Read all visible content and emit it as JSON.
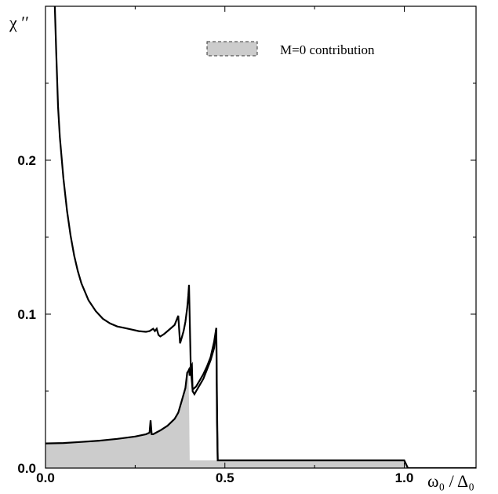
{
  "chart_data": {
    "type": "line",
    "xlim": [
      0.0,
      1.2
    ],
    "ylim": [
      0.0,
      0.3
    ],
    "x_ticks": [
      {
        "value": 0.0,
        "label": "0.0"
      },
      {
        "value": 0.5,
        "label": "0.5"
      },
      {
        "value": 1.0,
        "label": "1.0"
      }
    ],
    "y_ticks": [
      {
        "value": 0.0,
        "label": "0.0"
      },
      {
        "value": 0.1,
        "label": "0.1"
      },
      {
        "value": 0.2,
        "label": "0.2"
      }
    ],
    "x_minor_ticks": [
      0.25,
      0.75
    ],
    "y_minor_ticks": [
      0.05,
      0.15,
      0.25
    ],
    "ylabel": "χ ′′",
    "xlabel": "ω₀ / Δ₀",
    "legend": {
      "label": "M=0 contribution",
      "placement": "top-right",
      "fill": "#cccccc",
      "border": "dashed"
    },
    "series": [
      {
        "kind": "line",
        "color": "#000000",
        "x": [
          0.026,
          0.03,
          0.035,
          0.04,
          0.05,
          0.06,
          0.07,
          0.08,
          0.09,
          0.1,
          0.12,
          0.14,
          0.16,
          0.18,
          0.2,
          0.22,
          0.24,
          0.26,
          0.28,
          0.29,
          0.3,
          0.305,
          0.31,
          0.315,
          0.32,
          0.33,
          0.34,
          0.36,
          0.37,
          0.375,
          0.38,
          0.385,
          0.39,
          0.395,
          0.398,
          0.4,
          0.405,
          0.41,
          0.42,
          0.43,
          0.44,
          0.45,
          0.46,
          0.47,
          0.476,
          0.478,
          0.48
        ],
        "y": [
          0.3,
          0.27,
          0.235,
          0.215,
          0.188,
          0.167,
          0.151,
          0.138,
          0.128,
          0.12,
          0.109,
          0.102,
          0.097,
          0.094,
          0.092,
          0.091,
          0.09,
          0.089,
          0.0885,
          0.089,
          0.0905,
          0.089,
          0.0905,
          0.0865,
          0.0855,
          0.087,
          0.089,
          0.093,
          0.099,
          0.081,
          0.085,
          0.089,
          0.095,
          0.104,
          0.112,
          0.119,
          0.064,
          0.051,
          0.053,
          0.057,
          0.061,
          0.066,
          0.072,
          0.082,
          0.091,
          0.042,
          0.005
        ]
      },
      {
        "kind": "area",
        "color": "#cccccc",
        "x": [
          0.0,
          0.05,
          0.1,
          0.15,
          0.2,
          0.25,
          0.28,
          0.29,
          0.293,
          0.296,
          0.3,
          0.32,
          0.34,
          0.36,
          0.37,
          0.38,
          0.39,
          0.395,
          0.398,
          0.4,
          0.402,
          0.405,
          0.41,
          0.42,
          0.43,
          0.44,
          0.45,
          0.46,
          0.47,
          0.476,
          0.48,
          0.6,
          0.8,
          0.9,
          0.999,
          1.0,
          1.01,
          1.2
        ],
        "y": [
          0.016,
          0.0163,
          0.017,
          0.0178,
          0.019,
          0.0205,
          0.022,
          0.023,
          0.031,
          0.022,
          0.022,
          0.0245,
          0.0275,
          0.032,
          0.036,
          0.044,
          0.052,
          0.062,
          0.063,
          0.045,
          0.005,
          0.005,
          0.005,
          0.005,
          0.005,
          0.005,
          0.005,
          0.005,
          0.005,
          0.005,
          0.005,
          0.005,
          0.005,
          0.005,
          0.005,
          0.005,
          0.0,
          0.0
        ]
      },
      {
        "kind": "line",
        "color": "#000000",
        "x": [
          0.0,
          0.05,
          0.1,
          0.15,
          0.2,
          0.25,
          0.28,
          0.29,
          0.293,
          0.296,
          0.3,
          0.32,
          0.34,
          0.36,
          0.37,
          0.38,
          0.39,
          0.395,
          0.398,
          0.4,
          0.402,
          0.406,
          0.408,
          0.41,
          0.415,
          0.42,
          0.43,
          0.44,
          0.45,
          0.46,
          0.47,
          0.476,
          0.478,
          0.48,
          0.6,
          0.8,
          0.9,
          0.999,
          1.0,
          1.01,
          1.2
        ],
        "y": [
          0.016,
          0.0163,
          0.017,
          0.0178,
          0.019,
          0.0205,
          0.022,
          0.023,
          0.031,
          0.022,
          0.022,
          0.0245,
          0.0275,
          0.032,
          0.036,
          0.044,
          0.052,
          0.062,
          0.063,
          0.064,
          0.06,
          0.066,
          0.067,
          0.05,
          0.048,
          0.05,
          0.054,
          0.058,
          0.064,
          0.07,
          0.078,
          0.091,
          0.03,
          0.005,
          0.005,
          0.005,
          0.005,
          0.005,
          0.005,
          0.0,
          0.0
        ]
      }
    ]
  }
}
